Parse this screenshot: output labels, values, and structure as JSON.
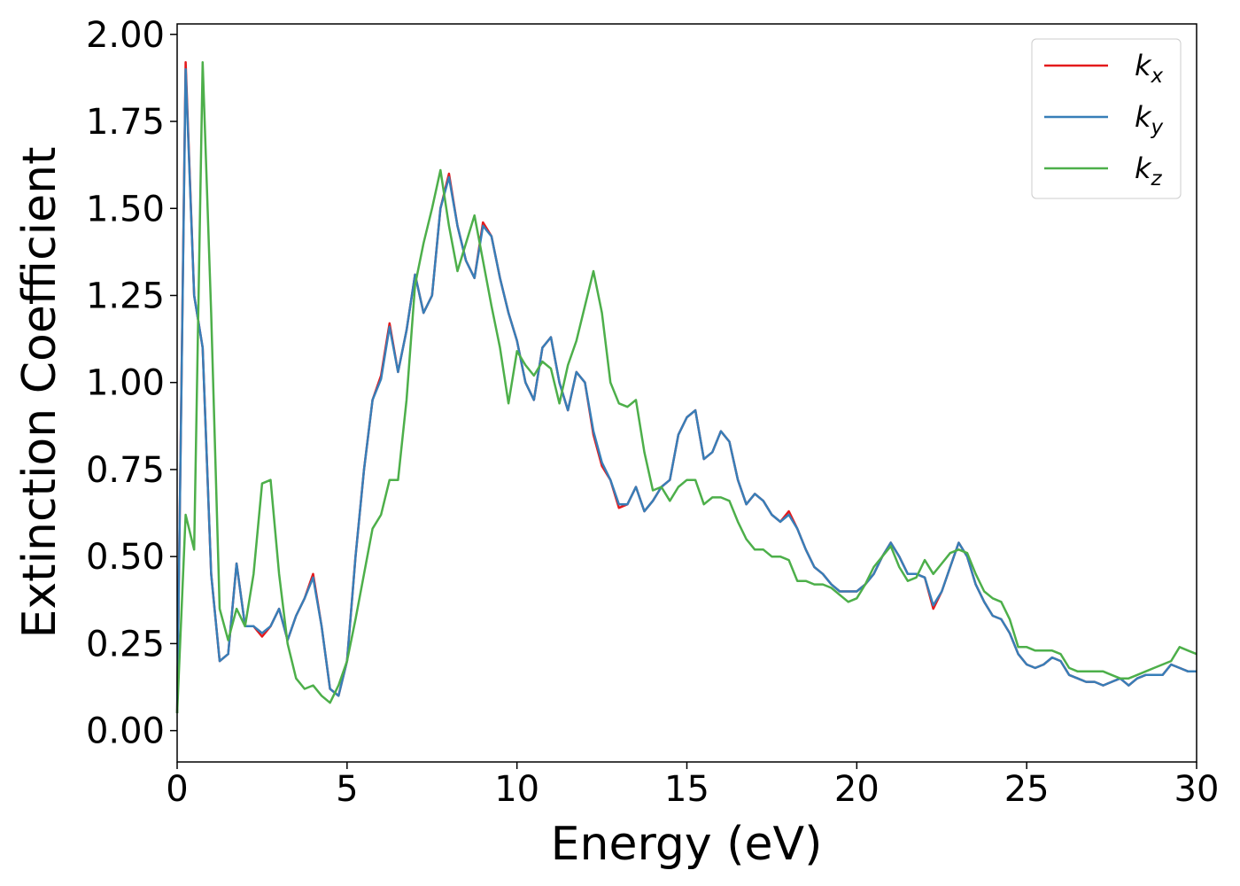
{
  "chart_data": {
    "type": "line",
    "xlabel": "Energy (eV)",
    "ylabel": "Extinction Coefficient",
    "xlim": [
      0,
      30
    ],
    "ylim": [
      -0.09,
      2.03
    ],
    "xticks": [
      0,
      5,
      10,
      15,
      20,
      25,
      30
    ],
    "yticks": [
      {
        "value": 0,
        "label": "0.00"
      },
      {
        "value": 0.25,
        "label": "0.25"
      },
      {
        "value": 0.5,
        "label": "0.50"
      },
      {
        "value": 0.75,
        "label": "0.75"
      },
      {
        "value": 1,
        "label": "1.00"
      },
      {
        "value": 1.25,
        "label": "1.25"
      },
      {
        "value": 1.5,
        "label": "1.50"
      },
      {
        "value": 1.75,
        "label": "1.75"
      },
      {
        "value": 2,
        "label": "2.00"
      }
    ],
    "legend": "upper right",
    "grid": false,
    "x": [
      0,
      0.25,
      0.5,
      0.75,
      1,
      1.25,
      1.5,
      1.75,
      2,
      2.25,
      2.5,
      2.75,
      3,
      3.25,
      3.5,
      3.75,
      4,
      4.25,
      4.5,
      4.75,
      5,
      5.25,
      5.5,
      5.75,
      6,
      6.25,
      6.5,
      6.75,
      7,
      7.25,
      7.5,
      7.75,
      8,
      8.25,
      8.5,
      8.75,
      9,
      9.25,
      9.5,
      9.75,
      10,
      10.25,
      10.5,
      10.75,
      11,
      11.25,
      11.5,
      11.75,
      12,
      12.25,
      12.5,
      12.75,
      13,
      13.25,
      13.5,
      13.75,
      14,
      14.25,
      14.5,
      14.75,
      15,
      15.25,
      15.5,
      15.75,
      16,
      16.25,
      16.5,
      16.75,
      17,
      17.25,
      17.5,
      17.75,
      18,
      18.25,
      18.5,
      18.75,
      19,
      19.25,
      19.5,
      19.75,
      20,
      20.25,
      20.5,
      20.75,
      21,
      21.25,
      21.5,
      21.75,
      22,
      22.25,
      22.5,
      22.75,
      23,
      23.25,
      23.5,
      23.75,
      24,
      24.25,
      24.5,
      24.75,
      25,
      25.25,
      25.5,
      25.75,
      26,
      26.25,
      26.5,
      26.75,
      27,
      27.25,
      27.5,
      27.75,
      28,
      28.25,
      28.5,
      28.75,
      29,
      29.25,
      29.5,
      29.75,
      30
    ],
    "series": [
      {
        "name": "kx",
        "color": "#e41a1c",
        "values": [
          0.05,
          1.92,
          1.25,
          1.1,
          0.45,
          0.2,
          0.22,
          0.48,
          0.3,
          0.3,
          0.27,
          0.3,
          0.35,
          0.26,
          0.33,
          0.38,
          0.45,
          0.3,
          0.12,
          0.1,
          0.2,
          0.5,
          0.75,
          0.95,
          1.02,
          1.17,
          1.03,
          1.15,
          1.31,
          1.2,
          1.25,
          1.5,
          1.6,
          1.45,
          1.35,
          1.3,
          1.46,
          1.42,
          1.3,
          1.2,
          1.12,
          1.0,
          0.95,
          1.1,
          1.13,
          1.0,
          0.92,
          1.03,
          1.0,
          0.85,
          0.76,
          0.72,
          0.64,
          0.65,
          0.7,
          0.63,
          0.66,
          0.7,
          0.72,
          0.85,
          0.9,
          0.92,
          0.78,
          0.8,
          0.86,
          0.83,
          0.72,
          0.65,
          0.68,
          0.66,
          0.62,
          0.6,
          0.63,
          0.58,
          0.52,
          0.47,
          0.45,
          0.42,
          0.4,
          0.4,
          0.4,
          0.42,
          0.45,
          0.5,
          0.54,
          0.5,
          0.45,
          0.45,
          0.44,
          0.35,
          0.4,
          0.47,
          0.54,
          0.5,
          0.42,
          0.37,
          0.33,
          0.32,
          0.28,
          0.22,
          0.19,
          0.18,
          0.19,
          0.21,
          0.2,
          0.16,
          0.15,
          0.14,
          0.14,
          0.13,
          0.14,
          0.15,
          0.13,
          0.15,
          0.16,
          0.16,
          0.16,
          0.19,
          0.18,
          0.17,
          0.17
        ]
      },
      {
        "name": "ky",
        "color": "#377eb8",
        "values": [
          0.05,
          1.9,
          1.25,
          1.1,
          0.45,
          0.2,
          0.22,
          0.48,
          0.3,
          0.3,
          0.28,
          0.3,
          0.35,
          0.26,
          0.33,
          0.38,
          0.44,
          0.3,
          0.12,
          0.1,
          0.2,
          0.5,
          0.75,
          0.95,
          1.01,
          1.16,
          1.03,
          1.15,
          1.31,
          1.2,
          1.25,
          1.5,
          1.59,
          1.45,
          1.35,
          1.3,
          1.45,
          1.42,
          1.3,
          1.2,
          1.12,
          1.0,
          0.95,
          1.1,
          1.13,
          1.0,
          0.92,
          1.03,
          1.0,
          0.86,
          0.77,
          0.72,
          0.65,
          0.65,
          0.7,
          0.63,
          0.66,
          0.7,
          0.72,
          0.85,
          0.9,
          0.92,
          0.78,
          0.8,
          0.86,
          0.83,
          0.72,
          0.65,
          0.68,
          0.66,
          0.62,
          0.6,
          0.62,
          0.58,
          0.52,
          0.47,
          0.45,
          0.42,
          0.4,
          0.4,
          0.4,
          0.42,
          0.45,
          0.5,
          0.54,
          0.5,
          0.45,
          0.45,
          0.44,
          0.36,
          0.4,
          0.47,
          0.54,
          0.5,
          0.42,
          0.37,
          0.33,
          0.32,
          0.28,
          0.22,
          0.19,
          0.18,
          0.19,
          0.21,
          0.2,
          0.16,
          0.15,
          0.14,
          0.14,
          0.13,
          0.14,
          0.15,
          0.13,
          0.15,
          0.16,
          0.16,
          0.16,
          0.19,
          0.18,
          0.17,
          0.17
        ]
      },
      {
        "name": "kz",
        "color": "#4daf4a",
        "values": [
          0.05,
          0.62,
          0.52,
          1.92,
          1.2,
          0.35,
          0.26,
          0.35,
          0.3,
          0.45,
          0.71,
          0.72,
          0.45,
          0.25,
          0.15,
          0.12,
          0.13,
          0.1,
          0.08,
          0.13,
          0.2,
          0.32,
          0.45,
          0.58,
          0.62,
          0.72,
          0.72,
          0.95,
          1.28,
          1.4,
          1.5,
          1.61,
          1.45,
          1.32,
          1.4,
          1.48,
          1.35,
          1.22,
          1.1,
          0.94,
          1.09,
          1.05,
          1.02,
          1.06,
          1.04,
          0.94,
          1.05,
          1.12,
          1.22,
          1.32,
          1.2,
          1.0,
          0.94,
          0.93,
          0.95,
          0.8,
          0.69,
          0.7,
          0.66,
          0.7,
          0.72,
          0.72,
          0.65,
          0.67,
          0.67,
          0.66,
          0.6,
          0.55,
          0.52,
          0.52,
          0.5,
          0.5,
          0.49,
          0.43,
          0.43,
          0.42,
          0.42,
          0.41,
          0.39,
          0.37,
          0.38,
          0.42,
          0.47,
          0.5,
          0.53,
          0.47,
          0.43,
          0.44,
          0.49,
          0.45,
          0.48,
          0.51,
          0.52,
          0.51,
          0.45,
          0.4,
          0.38,
          0.37,
          0.32,
          0.24,
          0.24,
          0.23,
          0.23,
          0.23,
          0.22,
          0.18,
          0.17,
          0.17,
          0.17,
          0.17,
          0.16,
          0.15,
          0.15,
          0.16,
          0.17,
          0.18,
          0.19,
          0.2,
          0.24,
          0.23,
          0.22
        ]
      }
    ]
  }
}
